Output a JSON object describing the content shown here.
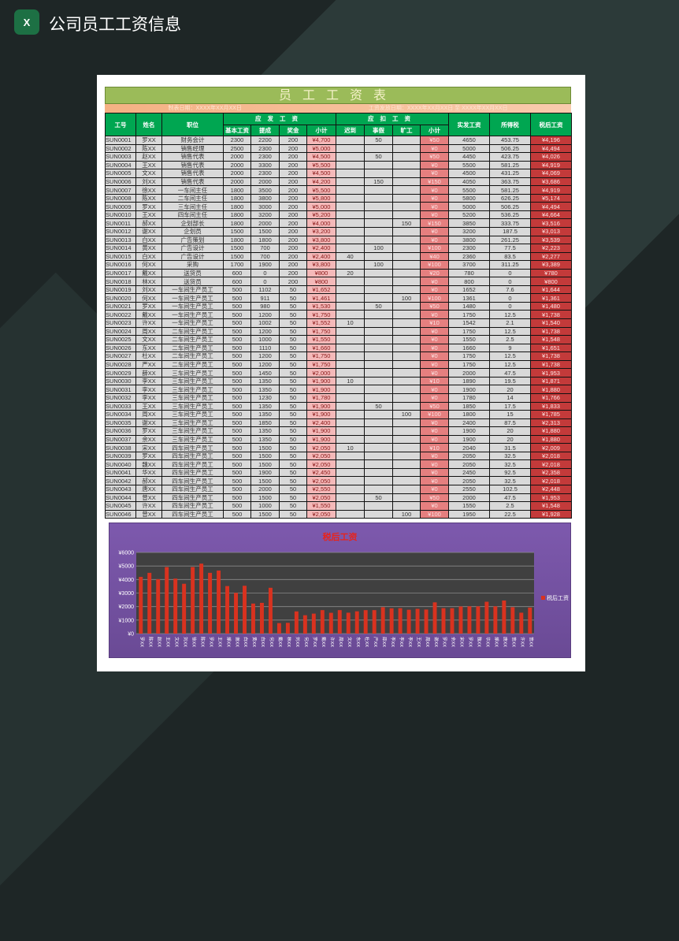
{
  "app": {
    "icon": "excel-icon",
    "icon_text": "X",
    "title": "公司员工工资信息"
  },
  "sheet": {
    "title": "员工工资表",
    "subtitle_left": "制表日期：XXXX年XX月XX日",
    "subtitle_right": "工资发放日期：XXXX年XX月XX日 至 XXXX年XX月XX日",
    "headers": {
      "id": "工号",
      "name": "姓名",
      "position": "职位",
      "payable": "应发工资",
      "deduct": "应扣工资",
      "actual": "实发工资",
      "tax": "所得税",
      "net": "税后工资",
      "payable_sub": [
        "基本工资",
        "提成",
        "奖金",
        "小计"
      ],
      "deduct_sub": [
        "迟到",
        "事假",
        "旷工",
        "小计"
      ]
    },
    "rows": [
      [
        "SUN0001",
        "罗XX",
        "财务会计",
        "2300",
        "2200",
        "200",
        "¥4,700",
        "",
        "50",
        "",
        "¥50",
        "4650",
        "453.75",
        "¥4,196"
      ],
      [
        "SUN0002",
        "陈XX",
        "销售经理",
        "2500",
        "2300",
        "200",
        "¥5,000",
        "",
        "",
        "",
        "¥0",
        "5000",
        "506.25",
        "¥4,494"
      ],
      [
        "SUN0003",
        "赵XX",
        "销售代表",
        "2000",
        "2300",
        "200",
        "¥4,500",
        "",
        "50",
        "",
        "¥50",
        "4450",
        "423.75",
        "¥4,026"
      ],
      [
        "SUN0004",
        "王XX",
        "销售代表",
        "2000",
        "3300",
        "200",
        "¥5,500",
        "",
        "",
        "",
        "¥0",
        "5500",
        "581.25",
        "¥4,919"
      ],
      [
        "SUN0005",
        "文XX",
        "销售代表",
        "2000",
        "2300",
        "200",
        "¥4,500",
        "",
        "",
        "",
        "¥0",
        "4500",
        "431.25",
        "¥4,069"
      ],
      [
        "SUN0006",
        "刘XX",
        "销售代表",
        "2000",
        "2000",
        "200",
        "¥4,200",
        "",
        "150",
        "",
        "¥150",
        "4050",
        "363.75",
        "¥3,686"
      ],
      [
        "SUN0007",
        "徐XX",
        "一车间主任",
        "1800",
        "3500",
        "200",
        "¥5,500",
        "",
        "",
        "",
        "¥0",
        "5500",
        "581.25",
        "¥4,919"
      ],
      [
        "SUN0008",
        "陈XX",
        "二车间主任",
        "1800",
        "3800",
        "200",
        "¥5,800",
        "",
        "",
        "",
        "¥0",
        "5800",
        "626.25",
        "¥5,174"
      ],
      [
        "SUN0009",
        "罗XX",
        "三车间主任",
        "1800",
        "3000",
        "200",
        "¥5,000",
        "",
        "",
        "",
        "¥0",
        "5000",
        "506.25",
        "¥4,494"
      ],
      [
        "SUN0010",
        "王XX",
        "四车间主任",
        "1800",
        "3200",
        "200",
        "¥5,200",
        "",
        "",
        "",
        "¥0",
        "5200",
        "536.25",
        "¥4,664"
      ],
      [
        "SUN0011",
        "郝XX",
        "企划部长",
        "1800",
        "2000",
        "200",
        "¥4,000",
        "",
        "",
        "150",
        "¥150",
        "3850",
        "333.75",
        "¥3,516"
      ],
      [
        "SUN0012",
        "谢XX",
        "企划员",
        "1500",
        "1500",
        "200",
        "¥3,200",
        "",
        "",
        "",
        "¥0",
        "3200",
        "187.5",
        "¥3,013"
      ],
      [
        "SUN0013",
        "白XX",
        "广告策划",
        "1800",
        "1800",
        "200",
        "¥3,800",
        "",
        "",
        "",
        "¥0",
        "3800",
        "261.25",
        "¥3,539"
      ],
      [
        "SUN0014",
        "黄XX",
        "广告设计",
        "1500",
        "700",
        "200",
        "¥2,400",
        "",
        "100",
        "",
        "¥100",
        "2300",
        "77.5",
        "¥2,223"
      ],
      [
        "SUN0015",
        "白XX",
        "广告设计",
        "1500",
        "700",
        "200",
        "¥2,400",
        "40",
        "",
        "",
        "¥40",
        "2360",
        "83.5",
        "¥2,277"
      ],
      [
        "SUN0016",
        "何XX",
        "采购",
        "1700",
        "1900",
        "200",
        "¥3,800",
        "",
        "100",
        "",
        "¥100",
        "3700",
        "311.25",
        "¥3,389"
      ],
      [
        "SUN0017",
        "戴XX",
        "送货员",
        "600",
        "0",
        "200",
        "¥800",
        "20",
        "",
        "",
        "¥20",
        "780",
        "0",
        "¥780"
      ],
      [
        "SUN0018",
        "林XX",
        "送货员",
        "600",
        "0",
        "200",
        "¥800",
        "",
        "",
        "",
        "¥0",
        "800",
        "0",
        "¥800"
      ],
      [
        "SUN0019",
        "刘XX",
        "一车间生产员工",
        "500",
        "1102",
        "50",
        "¥1,652",
        "",
        "",
        "",
        "¥0",
        "1652",
        "7.6",
        "¥1,644"
      ],
      [
        "SUN0020",
        "何XX",
        "一车间生产员工",
        "500",
        "911",
        "50",
        "¥1,461",
        "",
        "",
        "100",
        "¥100",
        "1361",
        "0",
        "¥1,361"
      ],
      [
        "SUN0021",
        "罗XX",
        "一车间生产员工",
        "500",
        "980",
        "50",
        "¥1,530",
        "",
        "50",
        "",
        "¥50",
        "1480",
        "0",
        "¥1,480"
      ],
      [
        "SUN0022",
        "戴XX",
        "一车间生产员工",
        "500",
        "1200",
        "50",
        "¥1,750",
        "",
        "",
        "",
        "¥0",
        "1750",
        "12.5",
        "¥1,738"
      ],
      [
        "SUN0023",
        "许XX",
        "一车间生产员工",
        "500",
        "1002",
        "50",
        "¥1,552",
        "10",
        "",
        "",
        "¥10",
        "1542",
        "2.1",
        "¥1,540"
      ],
      [
        "SUN0024",
        "周XX",
        "二车间生产员工",
        "500",
        "1200",
        "50",
        "¥1,750",
        "",
        "",
        "",
        "¥0",
        "1750",
        "12.5",
        "¥1,738"
      ],
      [
        "SUN0025",
        "文XX",
        "二车间生产员工",
        "500",
        "1000",
        "50",
        "¥1,550",
        "",
        "",
        "",
        "¥0",
        "1550",
        "2.5",
        "¥1,548"
      ],
      [
        "SUN0026",
        "东XX",
        "二车间生产员工",
        "500",
        "1110",
        "50",
        "¥1,660",
        "",
        "",
        "",
        "¥0",
        "1660",
        "9",
        "¥1,651"
      ],
      [
        "SUN0027",
        "杜XX",
        "二车间生产员工",
        "500",
        "1200",
        "50",
        "¥1,750",
        "",
        "",
        "",
        "¥0",
        "1750",
        "12.5",
        "¥1,738"
      ],
      [
        "SUN0028",
        "严XX",
        "二车间生产员工",
        "500",
        "1200",
        "50",
        "¥1,750",
        "",
        "",
        "",
        "¥0",
        "1750",
        "12.5",
        "¥1,738"
      ],
      [
        "SUN0029",
        "薛XX",
        "三车间生产员工",
        "500",
        "1450",
        "50",
        "¥2,000",
        "",
        "",
        "",
        "¥0",
        "2000",
        "47.5",
        "¥1,953"
      ],
      [
        "SUN0030",
        "李XX",
        "三车间生产员工",
        "500",
        "1350",
        "50",
        "¥1,900",
        "10",
        "",
        "",
        "¥10",
        "1890",
        "19.5",
        "¥1,871"
      ],
      [
        "SUN0031",
        "李XX",
        "三车间生产员工",
        "500",
        "1350",
        "50",
        "¥1,900",
        "",
        "",
        "",
        "¥0",
        "1900",
        "20",
        "¥1,880"
      ],
      [
        "SUN0032",
        "李XX",
        "三车间生产员工",
        "500",
        "1230",
        "50",
        "¥1,780",
        "",
        "",
        "",
        "¥0",
        "1780",
        "14",
        "¥1,766"
      ],
      [
        "SUN0033",
        "王XX",
        "三车间生产员工",
        "500",
        "1350",
        "50",
        "¥1,900",
        "",
        "50",
        "",
        "¥50",
        "1850",
        "17.5",
        "¥1,833"
      ],
      [
        "SUN0034",
        "周XX",
        "三车间生产员工",
        "500",
        "1350",
        "50",
        "¥1,900",
        "",
        "",
        "100",
        "¥100",
        "1800",
        "15",
        "¥1,785"
      ],
      [
        "SUN0035",
        "谢XX",
        "三车间生产员工",
        "500",
        "1850",
        "50",
        "¥2,400",
        "",
        "",
        "",
        "¥0",
        "2400",
        "87.5",
        "¥2,313"
      ],
      [
        "SUN0036",
        "罗XX",
        "三车间生产员工",
        "500",
        "1350",
        "50",
        "¥1,900",
        "",
        "",
        "",
        "¥0",
        "1900",
        "20",
        "¥1,880"
      ],
      [
        "SUN0037",
        "余XX",
        "三车间生产员工",
        "500",
        "1350",
        "50",
        "¥1,900",
        "",
        "",
        "",
        "¥0",
        "1900",
        "20",
        "¥1,880"
      ],
      [
        "SUN0038",
        "宋XX",
        "四车间生产员工",
        "500",
        "1500",
        "50",
        "¥2,050",
        "10",
        "",
        "",
        "¥10",
        "2040",
        "31.5",
        "¥2,009"
      ],
      [
        "SUN0039",
        "罗XX",
        "四车间生产员工",
        "500",
        "1500",
        "50",
        "¥2,050",
        "",
        "",
        "",
        "¥0",
        "2050",
        "32.5",
        "¥2,018"
      ],
      [
        "SUN0040",
        "魏XX",
        "四车间生产员工",
        "500",
        "1500",
        "50",
        "¥2,050",
        "",
        "",
        "",
        "¥0",
        "2050",
        "32.5",
        "¥2,018"
      ],
      [
        "SUN0041",
        "华XX",
        "四车间生产员工",
        "500",
        "1900",
        "50",
        "¥2,450",
        "",
        "",
        "",
        "¥0",
        "2450",
        "92.5",
        "¥2,358"
      ],
      [
        "SUN0042",
        "郝XX",
        "四车间生产员工",
        "500",
        "1500",
        "50",
        "¥2,050",
        "",
        "",
        "",
        "¥0",
        "2050",
        "32.5",
        "¥2,018"
      ],
      [
        "SUN0043",
        "唐XX",
        "四车间生产员工",
        "500",
        "2000",
        "50",
        "¥2,550",
        "",
        "",
        "",
        "¥0",
        "2550",
        "102.5",
        "¥2,448"
      ],
      [
        "SUN0044",
        "曾XX",
        "四车间生产员工",
        "500",
        "1500",
        "50",
        "¥2,050",
        "",
        "50",
        "",
        "¥50",
        "2000",
        "47.5",
        "¥1,953"
      ],
      [
        "SUN0045",
        "许XX",
        "四车间生产员工",
        "500",
        "1000",
        "50",
        "¥1,550",
        "",
        "",
        "",
        "¥0",
        "1550",
        "2.5",
        "¥1,548"
      ],
      [
        "SUN0046",
        "曾XX",
        "四车间生产员工",
        "500",
        "1500",
        "50",
        "¥2,050",
        "",
        "",
        "100",
        "¥100",
        "1950",
        "22.5",
        "¥1,928"
      ]
    ]
  },
  "chart_data": {
    "type": "bar",
    "title": "税后工资",
    "legend": "税后工资",
    "legend_position": "right",
    "ylim": [
      0,
      6000
    ],
    "yticks": [
      "¥0",
      "¥1000",
      "¥2000",
      "¥3000",
      "¥4000",
      "¥5000",
      "¥6000"
    ],
    "grid": true,
    "bar_color": "#d9321f",
    "plot_bg": "#404040",
    "categories": [
      "罗XX",
      "陈XX",
      "赵XX",
      "王XX",
      "文XX",
      "刘XX",
      "徐XX",
      "陈XX",
      "罗XX",
      "王XX",
      "郝XX",
      "谢XX",
      "白XX",
      "黄XX",
      "白XX",
      "何XX",
      "戴XX",
      "林XX",
      "刘XX",
      "何XX",
      "罗XX",
      "戴XX",
      "许XX",
      "周XX",
      "文XX",
      "东XX",
      "杜XX",
      "严XX",
      "薛XX",
      "李XX",
      "李XX",
      "李XX",
      "王XX",
      "周XX",
      "谢XX",
      "罗XX",
      "余XX",
      "宋XX",
      "罗XX",
      "魏XX",
      "华XX",
      "郝XX",
      "唐XX",
      "曾XX",
      "许XX",
      "曾XX"
    ],
    "values": [
      4196,
      4494,
      4026,
      4919,
      4069,
      3686,
      4919,
      5174,
      4494,
      4664,
      3516,
      3013,
      3539,
      2223,
      2277,
      3389,
      780,
      800,
      1644,
      1361,
      1480,
      1738,
      1540,
      1738,
      1548,
      1651,
      1738,
      1738,
      1953,
      1871,
      1880,
      1766,
      1833,
      1785,
      2313,
      1880,
      1880,
      2009,
      2018,
      2018,
      2358,
      2018,
      2448,
      1953,
      1548,
      1928
    ]
  }
}
